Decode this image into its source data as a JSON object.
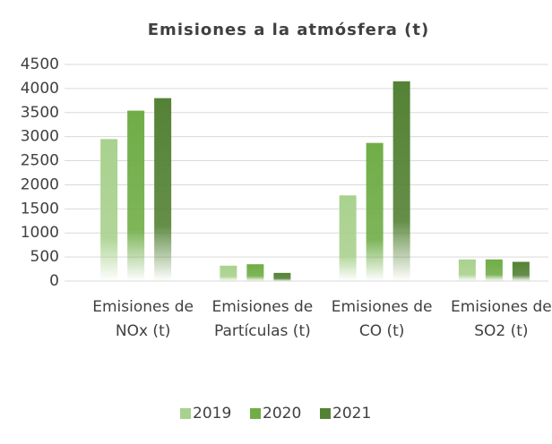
{
  "chart_data": {
    "type": "bar",
    "title": "Emisiones a la atmósfera (t)",
    "categories": [
      "Emisiones de NOx (t)",
      "Emisiones de Partículas (t)",
      "Emisiones de CO (t)",
      "Emisiones de SO2 (t)"
    ],
    "series": [
      {
        "name": "2019",
        "color": "#a9d18e",
        "values": [
          2950,
          320,
          1780,
          450
        ]
      },
      {
        "name": "2020",
        "color": "#70ad47",
        "values": [
          3540,
          350,
          2870,
          450
        ]
      },
      {
        "name": "2021",
        "color": "#548235",
        "values": [
          3800,
          170,
          4150,
          400
        ]
      }
    ],
    "ylim": [
      0,
      4500
    ],
    "yticks": [
      0,
      500,
      1000,
      1500,
      2000,
      2500,
      3000,
      3500,
      4000,
      4500
    ],
    "grid": true,
    "legend": "bottom"
  }
}
